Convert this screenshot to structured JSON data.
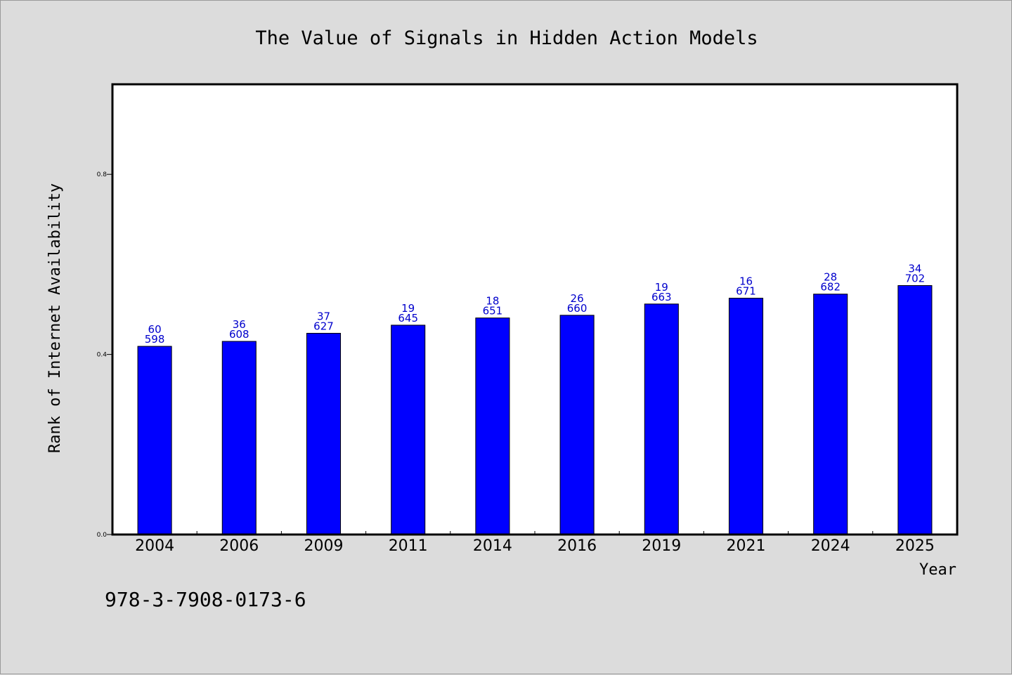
{
  "chart_data": {
    "type": "bar",
    "title": "The Value of Signals in Hidden Action Models",
    "xlabel": "Year",
    "ylabel": "Rank of Internet Availability",
    "categories": [
      "2004",
      "2006",
      "2009",
      "2011",
      "2014",
      "2016",
      "2019",
      "2021",
      "2024",
      "2025"
    ],
    "values": [
      0.418,
      0.429,
      0.447,
      0.465,
      0.481,
      0.487,
      0.512,
      0.525,
      0.534,
      0.553
    ],
    "label_top": [
      "60",
      "36",
      "37",
      "19",
      "18",
      "26",
      "19",
      "16",
      "28",
      "34"
    ],
    "label_bottom": [
      "598",
      "608",
      "627",
      "645",
      "651",
      "660",
      "663",
      "671",
      "682",
      "702"
    ],
    "ylim": [
      0,
      1.0
    ],
    "yticks": [
      0.0,
      0.4,
      0.8
    ],
    "ytick_labels": [
      "0.0",
      "0.4",
      "0.8"
    ],
    "bar_color": "#0000ff",
    "label_color": "#0000cc",
    "grid": false
  },
  "footer": {
    "isbn": "978-3-7908-0173-6"
  },
  "colors": {
    "background": "#dcdcdc",
    "plot_background": "#ffffff"
  }
}
